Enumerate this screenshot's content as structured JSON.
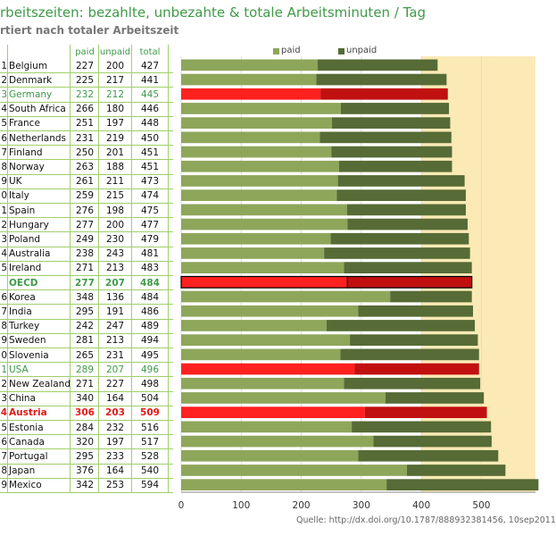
{
  "title": "rbeitszeiten: bezahlte, unbezahte & totale Arbeitsminuten / Tag",
  "subtitle": "rtiert nach totaler Arbeitszeit",
  "table_headers": {
    "paid": "paid",
    "unpaid": "unpaid",
    "total": "total"
  },
  "legend": {
    "paid": "paid",
    "unpaid": "unpaid"
  },
  "source": "Quelle: http://dx.doi.org/10.1787/888932381456, 10sep2011",
  "colors": {
    "paid": "#8ea65a",
    "unpaid": "#566b35",
    "highlight_paid": "#ff2020",
    "highlight_unpaid": "#c01010",
    "background_band": "#fbeab6",
    "green_text": "#3f9a48",
    "austria_text": "#e31b17"
  },
  "rows": [
    {
      "rank": "1",
      "country": "Belgium",
      "paid": 227,
      "unpaid": 200,
      "total": 427,
      "style": "normal"
    },
    {
      "rank": "2",
      "country": "Denmark",
      "paid": 225,
      "unpaid": 217,
      "total": 441,
      "style": "normal"
    },
    {
      "rank": "3",
      "country": "Germany",
      "paid": 232,
      "unpaid": 212,
      "total": 445,
      "style": "highlight"
    },
    {
      "rank": "4",
      "country": "South Africa",
      "paid": 266,
      "unpaid": 180,
      "total": 446,
      "style": "normal"
    },
    {
      "rank": "5",
      "country": "France",
      "paid": 251,
      "unpaid": 197,
      "total": 448,
      "style": "normal"
    },
    {
      "rank": "6",
      "country": "Netherlands",
      "paid": 231,
      "unpaid": 219,
      "total": 450,
      "style": "normal"
    },
    {
      "rank": "7",
      "country": "Finland",
      "paid": 250,
      "unpaid": 201,
      "total": 451,
      "style": "normal"
    },
    {
      "rank": "8",
      "country": "Norway",
      "paid": 263,
      "unpaid": 188,
      "total": 451,
      "style": "normal"
    },
    {
      "rank": "9",
      "country": "UK",
      "paid": 261,
      "unpaid": 211,
      "total": 473,
      "style": "normal"
    },
    {
      "rank": "0",
      "country": "Italy",
      "paid": 259,
      "unpaid": 215,
      "total": 474,
      "style": "normal"
    },
    {
      "rank": "1",
      "country": "Spain",
      "paid": 276,
      "unpaid": 198,
      "total": 475,
      "style": "normal"
    },
    {
      "rank": "2",
      "country": "Hungary",
      "paid": 277,
      "unpaid": 200,
      "total": 477,
      "style": "normal"
    },
    {
      "rank": "3",
      "country": "Poland",
      "paid": 249,
      "unpaid": 230,
      "total": 479,
      "style": "normal"
    },
    {
      "rank": "4",
      "country": "Australia",
      "paid": 238,
      "unpaid": 243,
      "total": 481,
      "style": "normal"
    },
    {
      "rank": "5",
      "country": "Ireland",
      "paid": 271,
      "unpaid": 213,
      "total": 483,
      "style": "normal"
    },
    {
      "rank": "",
      "country": "OECD",
      "paid": 277,
      "unpaid": 207,
      "total": 484,
      "style": "oecd"
    },
    {
      "rank": "6",
      "country": "Korea",
      "paid": 348,
      "unpaid": 136,
      "total": 484,
      "style": "normal"
    },
    {
      "rank": "7",
      "country": "India",
      "paid": 295,
      "unpaid": 191,
      "total": 486,
      "style": "normal"
    },
    {
      "rank": "8",
      "country": "Turkey",
      "paid": 242,
      "unpaid": 247,
      "total": 489,
      "style": "normal"
    },
    {
      "rank": "9",
      "country": "Sweden",
      "paid": 281,
      "unpaid": 213,
      "total": 494,
      "style": "normal"
    },
    {
      "rank": "0",
      "country": "Slovenia",
      "paid": 265,
      "unpaid": 231,
      "total": 495,
      "style": "normal"
    },
    {
      "rank": "1",
      "country": "USA",
      "paid": 289,
      "unpaid": 207,
      "total": 496,
      "style": "highlight"
    },
    {
      "rank": "2",
      "country": "New Zealand",
      "paid": 271,
      "unpaid": 227,
      "total": 498,
      "style": "normal"
    },
    {
      "rank": "3",
      "country": "China",
      "paid": 340,
      "unpaid": 164,
      "total": 504,
      "style": "normal"
    },
    {
      "rank": "4",
      "country": "Austria",
      "paid": 306,
      "unpaid": 203,
      "total": 509,
      "style": "austria"
    },
    {
      "rank": "5",
      "country": "Estonia",
      "paid": 284,
      "unpaid": 232,
      "total": 516,
      "style": "normal"
    },
    {
      "rank": "6",
      "country": "Canada",
      "paid": 320,
      "unpaid": 197,
      "total": 517,
      "style": "normal"
    },
    {
      "rank": "7",
      "country": "Portugal",
      "paid": 295,
      "unpaid": 233,
      "total": 528,
      "style": "normal"
    },
    {
      "rank": "8",
      "country": "Japan",
      "paid": 376,
      "unpaid": 164,
      "total": 540,
      "style": "normal"
    },
    {
      "rank": "9",
      "country": "Mexico",
      "paid": 342,
      "unpaid": 253,
      "total": 594,
      "style": "normal"
    }
  ],
  "chart_data": {
    "type": "bar",
    "orientation": "horizontal",
    "stacked": true,
    "title": "rbeitszeiten: bezahlte, unbezahte & totale Arbeitsminuten / Tag",
    "subtitle": "rtiert nach totaler Arbeitszeit",
    "categories": [
      "Belgium",
      "Denmark",
      "Germany",
      "South Africa",
      "France",
      "Netherlands",
      "Finland",
      "Norway",
      "UK",
      "Italy",
      "Spain",
      "Hungary",
      "Poland",
      "Australia",
      "Ireland",
      "OECD",
      "Korea",
      "India",
      "Turkey",
      "Sweden",
      "Slovenia",
      "USA",
      "New Zealand",
      "China",
      "Austria",
      "Estonia",
      "Canada",
      "Portugal",
      "Japan",
      "Mexico"
    ],
    "series": [
      {
        "name": "paid",
        "values": [
          227,
          225,
          232,
          266,
          251,
          231,
          250,
          263,
          261,
          259,
          276,
          277,
          249,
          238,
          271,
          277,
          348,
          295,
          242,
          281,
          265,
          289,
          271,
          340,
          306,
          284,
          320,
          295,
          376,
          342
        ]
      },
      {
        "name": "unpaid",
        "values": [
          200,
          217,
          212,
          180,
          197,
          219,
          201,
          188,
          211,
          215,
          198,
          200,
          230,
          243,
          213,
          207,
          136,
          191,
          247,
          213,
          231,
          207,
          227,
          164,
          203,
          232,
          197,
          233,
          164,
          253
        ]
      }
    ],
    "highlighted": [
      "Germany",
      "OECD",
      "USA",
      "Austria"
    ],
    "xlim": [
      0,
      590
    ],
    "xticks": [
      0,
      100,
      200,
      300,
      400,
      500
    ],
    "legend_position": "top"
  }
}
